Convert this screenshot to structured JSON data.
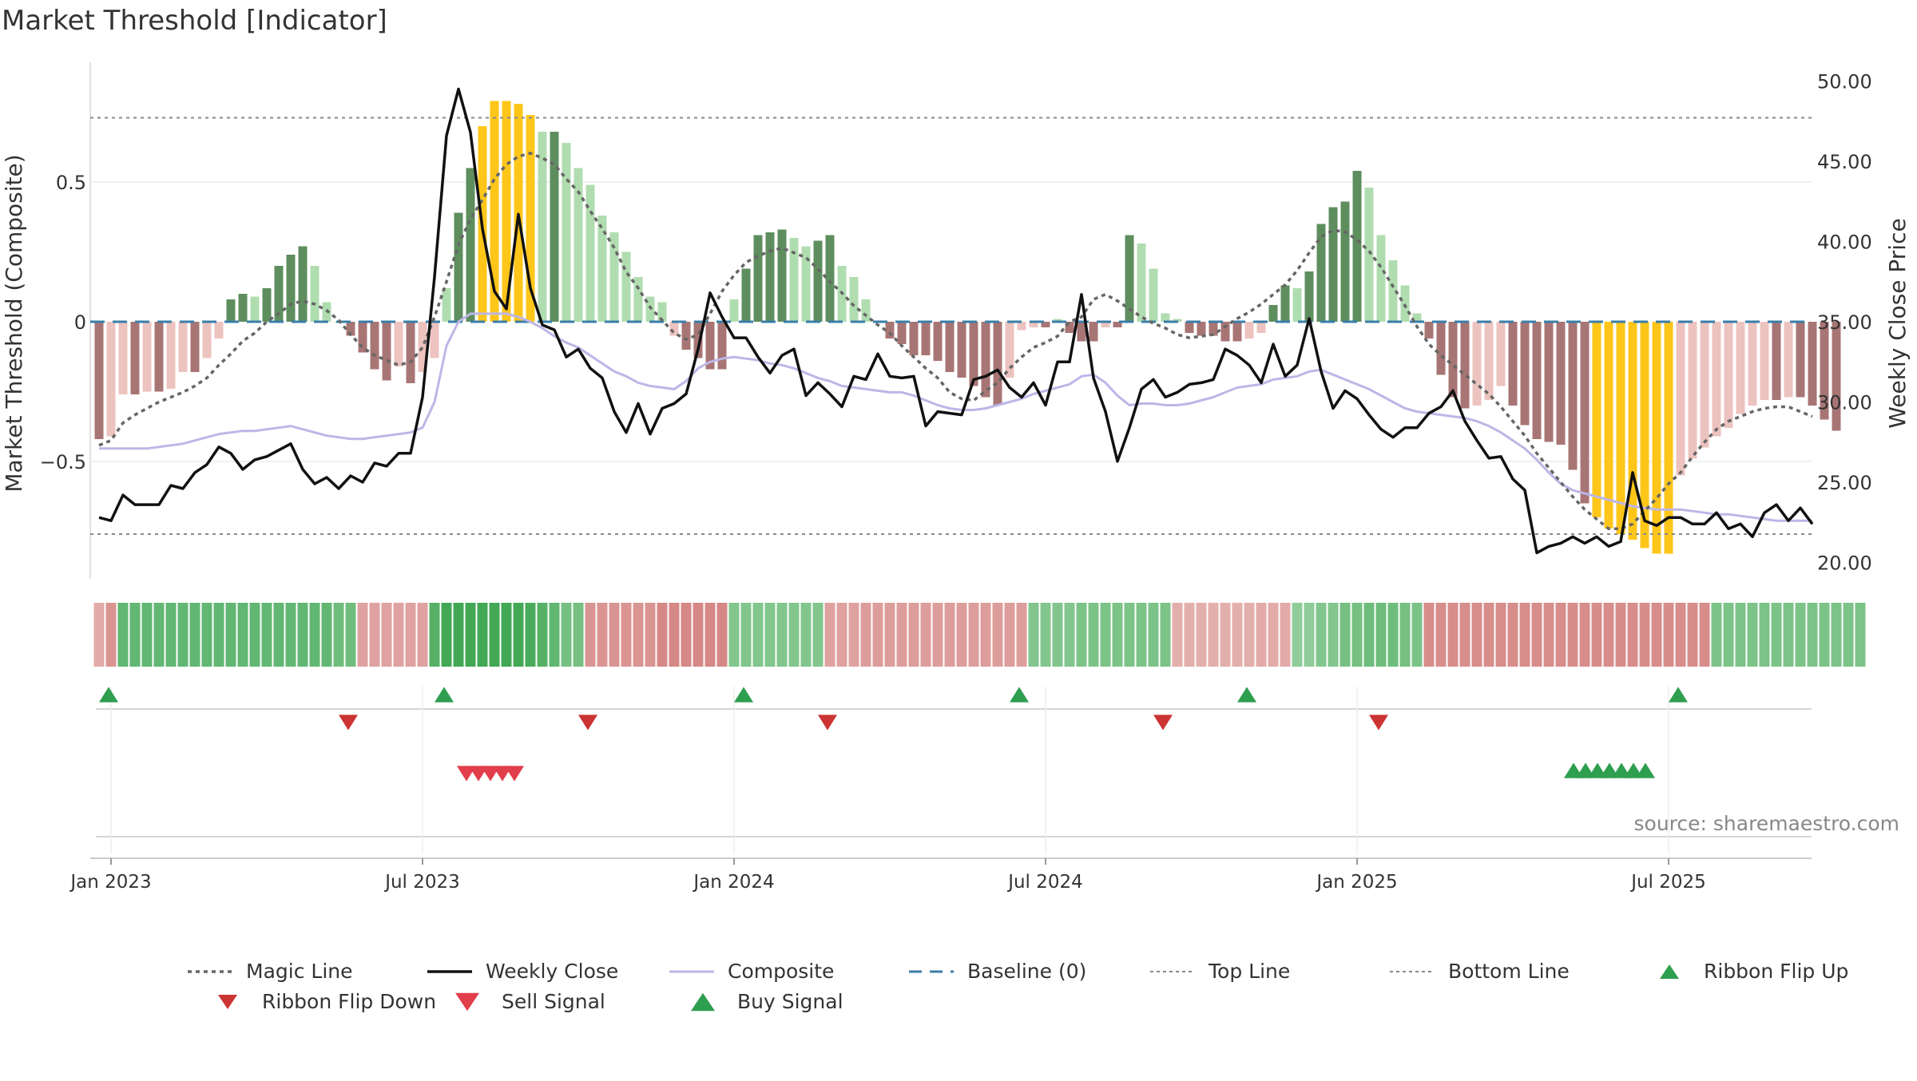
{
  "chart_data": {
    "type": "composite-indicator",
    "title": "Market Threshold [Indicator]",
    "source": "source: sharemaestro.com",
    "ylabel_left": "Market Threshold (Composite)",
    "ylabel_right": "Weekly Close Price",
    "ylim_left": [
      -0.92,
      0.92
    ],
    "ylim_right": [
      18.5,
      50.5
    ],
    "left_ticks": [
      {
        "v": 0.5,
        "label": "0.5"
      },
      {
        "v": 0,
        "label": "0"
      },
      {
        "v": -0.5,
        "label": "−0.5"
      }
    ],
    "right_ticks": [
      {
        "v": 50,
        "label": "50.00"
      },
      {
        "v": 45,
        "label": "45.00"
      },
      {
        "v": 40,
        "label": "40.00"
      },
      {
        "v": 35,
        "label": "35.00"
      },
      {
        "v": 30,
        "label": "30.00"
      },
      {
        "v": 25,
        "label": "25.00"
      },
      {
        "v": 20,
        "label": "20.00"
      }
    ],
    "x_ticks": [
      {
        "w": 1,
        "label": "Jan 2023"
      },
      {
        "w": 27,
        "label": "Jul 2023"
      },
      {
        "w": 53,
        "label": "Jan 2024"
      },
      {
        "w": 79,
        "label": "Jul 2024"
      },
      {
        "w": 105,
        "label": "Jan 2025"
      },
      {
        "w": 131,
        "label": "Jul 2025"
      }
    ],
    "week_count": 144,
    "top_line": 0.73,
    "bottom_line": -0.76,
    "composite_bars": [
      -0.42,
      -0.41,
      -0.26,
      -0.26,
      -0.25,
      -0.25,
      -0.24,
      -0.18,
      -0.18,
      -0.13,
      -0.06,
      0.08,
      0.1,
      0.09,
      0.12,
      0.2,
      0.24,
      0.27,
      0.2,
      0.07,
      0,
      -0.05,
      -0.11,
      -0.17,
      -0.21,
      -0.16,
      -0.22,
      -0.18,
      -0.13,
      0.12,
      0.39,
      0.55,
      0.7,
      0.79,
      0.79,
      0.78,
      0.74,
      0.68,
      0.68,
      0.64,
      0.55,
      0.49,
      0.38,
      0.32,
      0.25,
      0.16,
      0.09,
      0.07,
      -0.05,
      -0.1,
      -0.13,
      -0.17,
      -0.17,
      0.08,
      0.19,
      0.31,
      0.32,
      0.33,
      0.3,
      0.27,
      0.29,
      0.31,
      0.2,
      0.16,
      0.08,
      0,
      -0.06,
      -0.08,
      -0.12,
      -0.12,
      -0.14,
      -0.18,
      -0.2,
      -0.23,
      -0.27,
      -0.3,
      -0.2,
      -0.03,
      -0.02,
      -0.02,
      0.01,
      -0.04,
      -0.07,
      -0.07,
      -0.02,
      -0.02,
      0.31,
      0.28,
      0.19,
      0.03,
      0.01,
      -0.04,
      -0.05,
      -0.05,
      -0.07,
      -0.07,
      -0.06,
      -0.04,
      0.06,
      0.13,
      0.12,
      0.18,
      0.35,
      0.41,
      0.43,
      0.54,
      0.48,
      0.31,
      0.22,
      0.13,
      0.03,
      -0.06,
      -0.19,
      -0.27,
      -0.31,
      -0.3,
      -0.28,
      -0.23,
      -0.3,
      -0.37,
      -0.42,
      -0.43,
      -0.44,
      -0.53,
      -0.65,
      -0.7,
      -0.74,
      -0.76,
      -0.78,
      -0.81,
      -0.83,
      -0.83,
      -0.55,
      -0.49,
      -0.45,
      -0.41,
      -0.38,
      -0.33,
      -0.3,
      -0.28,
      -0.28,
      -0.27,
      -0.27,
      -0.3,
      -0.35,
      -0.39
    ],
    "weekly_close": [
      22.8,
      22.6,
      24.2,
      23.6,
      23.6,
      23.6,
      24.8,
      24.6,
      25.6,
      26.1,
      27.2,
      26.8,
      25.8,
      26.4,
      26.6,
      27,
      27.4,
      25.8,
      24.9,
      25.3,
      24.6,
      25.4,
      25,
      26.2,
      26,
      26.8,
      26.8,
      30.3,
      37.8,
      46.6,
      49.5,
      46.8,
      40.8,
      36.9,
      35.8,
      41.7,
      37.1,
      34.8,
      34.5,
      32.8,
      33.3,
      32.1,
      31.5,
      29.4,
      28.1,
      29.9,
      28,
      29.6,
      29.9,
      30.5,
      33.3,
      36.8,
      35.3,
      34,
      34,
      32.8,
      31.8,
      32.9,
      33.3,
      30.4,
      31.2,
      30.5,
      29.7,
      31.6,
      31.4,
      33,
      31.6,
      31.5,
      31.6,
      28.5,
      29.4,
      29.3,
      29.2,
      31.4,
      31.6,
      32,
      30.9,
      30.3,
      31.2,
      29.8,
      32.5,
      32.5,
      36.7,
      31.5,
      29.4,
      26.3,
      28.4,
      30.8,
      31.4,
      30.3,
      30.6,
      31.1,
      31.2,
      31.4,
      33.3,
      32.9,
      32.3,
      31.2,
      33.6,
      31.6,
      32.3,
      35.2,
      31.9,
      29.6,
      30.7,
      30.2,
      29.2,
      28.3,
      27.8,
      28.4,
      28.4,
      29.3,
      29.7,
      30.7,
      28.8,
      27.6,
      26.5,
      26.6,
      25.2,
      24.5,
      20.6,
      21,
      21.2,
      21.6,
      21.2,
      21.6,
      21,
      21.3,
      25.6,
      22.6,
      22.3,
      22.8,
      22.8,
      22.4,
      22.4,
      23.1,
      22.1,
      22.4,
      21.6,
      23.1,
      23.6,
      22.6,
      23.4,
      22.4
    ],
    "composite_line": [
      27.1,
      27.1,
      27.1,
      27.1,
      27.1,
      27.2,
      27.3,
      27.4,
      27.6,
      27.8,
      28,
      28.1,
      28.2,
      28.2,
      28.3,
      28.4,
      28.5,
      28.3,
      28.1,
      27.9,
      27.8,
      27.7,
      27.7,
      27.8,
      27.9,
      28,
      28.1,
      28.4,
      30,
      33.5,
      35,
      35.5,
      35.5,
      35.5,
      35.5,
      35.3,
      35,
      34.6,
      34.1,
      33.7,
      33.4,
      32.9,
      32.4,
      31.9,
      31.6,
      31.2,
      31,
      30.9,
      30.8,
      31.3,
      32.1,
      32.5,
      32.7,
      32.8,
      32.7,
      32.6,
      32.4,
      32.3,
      32.1,
      31.8,
      31.5,
      31.3,
      31,
      30.9,
      30.8,
      30.7,
      30.6,
      30.6,
      30.4,
      30.1,
      29.8,
      29.6,
      29.5,
      29.5,
      29.6,
      29.8,
      30,
      30.2,
      30.5,
      30.7,
      30.9,
      31.1,
      31.6,
      31.7,
      31.2,
      30.4,
      29.8,
      29.9,
      29.9,
      29.8,
      29.8,
      29.9,
      30.1,
      30.3,
      30.6,
      30.9,
      31,
      31.1,
      31.4,
      31.5,
      31.6,
      31.9,
      32,
      31.7,
      31.4,
      31.1,
      30.8,
      30.4,
      30,
      29.6,
      29.4,
      29.3,
      29.2,
      29.1,
      29,
      28.8,
      28.5,
      28.1,
      27.6,
      27.1,
      26.4,
      25.6,
      24.9,
      24.5,
      24.3,
      24.1,
      23.9,
      23.7,
      23.5,
      23.4,
      23.3,
      23.3,
      23.3,
      23.2,
      23.1,
      23,
      23,
      22.9,
      22.8,
      22.7,
      22.6,
      22.6,
      22.6,
      22.6
    ],
    "magic_line": [
      27.3,
      27.6,
      28.7,
      29.2,
      29.6,
      30,
      30.3,
      30.6,
      31,
      31.5,
      32.3,
      33,
      33.8,
      34.3,
      35,
      35.5,
      36.1,
      36.3,
      36.1,
      35.7,
      35.1,
      34.2,
      33.4,
      32.9,
      32.6,
      32.3,
      32.5,
      33.4,
      35.3,
      37.5,
      39.8,
      41.4,
      42.6,
      43.9,
      44.8,
      45.3,
      45.5,
      45.2,
      44.8,
      43.9,
      43.1,
      41.9,
      40.8,
      39.6,
      38.1,
      37.1,
      35.9,
      35.1,
      34.3,
      33.9,
      34.2,
      35.5,
      36.9,
      37.9,
      38.7,
      39.1,
      39.4,
      39.6,
      39.3,
      39,
      38.3,
      37.5,
      36.8,
      36,
      35.4,
      34.8,
      34.3,
      33.5,
      32.8,
      32.1,
      31.5,
      30.6,
      30.2,
      30.1,
      30.7,
      31.2,
      32.1,
      32.8,
      33.4,
      33.7,
      34.1,
      35,
      35.3,
      36.4,
      36.7,
      36.3,
      35.8,
      35.3,
      34.9,
      34.6,
      34.2,
      34,
      34.1,
      34.2,
      34.7,
      35.2,
      35.6,
      36.1,
      36.7,
      37.3,
      38.2,
      39.3,
      40.3,
      40.7,
      40.6,
      40.1,
      39.4,
      38.4,
      37.2,
      36,
      34.7,
      33.6,
      32.9,
      32.3,
      31.7,
      31.1,
      30.5,
      29.7,
      28.8,
      27.9,
      26.8,
      25.9,
      25,
      24.1,
      23.3,
      22.7,
      22.1,
      22.1,
      22.4,
      23.2,
      24,
      24.9,
      25.6,
      26.6,
      27.5,
      28.3,
      28.8,
      29.1,
      29.4,
      29.6,
      29.7,
      29.7,
      29.4,
      29.1
    ],
    "ribbon_levels": [
      -0.35,
      -0.6,
      0.7,
      0.7,
      0.7,
      0.7,
      0.7,
      0.7,
      0.7,
      0.7,
      0.7,
      0.7,
      0.7,
      0.7,
      0.7,
      0.7,
      0.7,
      0.7,
      0.7,
      0.7,
      0.6,
      0.6,
      -0.45,
      -0.45,
      -0.45,
      -0.45,
      -0.45,
      -0.45,
      0.8,
      0.95,
      0.95,
      0.95,
      0.95,
      0.95,
      0.95,
      0.95,
      0.9,
      0.8,
      0.7,
      0.55,
      0.55,
      -0.6,
      -0.6,
      -0.6,
      -0.6,
      -0.6,
      -0.6,
      -0.75,
      -0.75,
      -0.75,
      -0.75,
      -0.75,
      -0.75,
      0.45,
      0.45,
      0.45,
      0.45,
      0.45,
      0.45,
      0.45,
      0.45,
      -0.45,
      -0.45,
      -0.45,
      -0.5,
      -0.5,
      -0.5,
      -0.5,
      -0.5,
      -0.5,
      -0.5,
      -0.5,
      -0.5,
      -0.5,
      -0.5,
      -0.5,
      -0.5,
      -0.5,
      0.45,
      0.45,
      0.45,
      0.45,
      0.5,
      0.5,
      0.5,
      0.5,
      0.5,
      0.5,
      0.5,
      0.5,
      -0.3,
      -0.3,
      -0.3,
      -0.3,
      -0.3,
      -0.3,
      -0.3,
      -0.35,
      -0.35,
      -0.35,
      0.35,
      0.35,
      0.45,
      0.45,
      0.55,
      0.55,
      0.6,
      0.6,
      0.6,
      0.55,
      0.5,
      -0.7,
      -0.7,
      -0.7,
      -0.7,
      -0.7,
      -0.7,
      -0.7,
      -0.7,
      -0.7,
      -0.7,
      -0.7,
      -0.7,
      -0.7,
      -0.7,
      -0.7,
      -0.7,
      -0.7,
      -0.7,
      -0.7,
      -0.7,
      -0.7,
      -0.7,
      -0.7,
      -0.7,
      0.5,
      0.5,
      0.5,
      0.5,
      0.5,
      0.5,
      0.5,
      0.5,
      0.5,
      0.5,
      0.5,
      0.5,
      0.5
    ],
    "flip_up_weeks": [
      0,
      28,
      53,
      76,
      95,
      131
    ],
    "flip_down_weeks": [
      20,
      40,
      60,
      88,
      106
    ],
    "sell_signal_weeks": [
      30,
      31,
      32,
      33,
      34
    ],
    "buy_signal_weeks": [
      122,
      123,
      124,
      125,
      126,
      127,
      128
    ],
    "legend": [
      {
        "label": "Magic Line",
        "type": "dotted"
      },
      {
        "label": "Weekly Close",
        "type": "solid"
      },
      {
        "label": "Composite",
        "type": "lavender"
      },
      {
        "label": "Baseline (0)",
        "type": "dashed"
      },
      {
        "label": "Top Line",
        "type": "thin-dotted"
      },
      {
        "label": "Bottom Line",
        "type": "thin-dotted"
      },
      {
        "label": "Ribbon Flip Up",
        "type": "tri-up"
      },
      {
        "label": "Ribbon Flip Down",
        "type": "tri-down"
      },
      {
        "label": "Sell Signal",
        "type": "tri-down-red"
      },
      {
        "label": "Buy Signal",
        "type": "tri-up-green"
      }
    ]
  },
  "colors": {
    "bar_pos_strong": "#5e8e5e",
    "bar_pos_weak": "#b0ddb0",
    "bar_neg_strong": "#a87575",
    "bar_neg_weak": "#edc3bf",
    "bar_extreme": "#ffc61a",
    "close_line": "#111111",
    "composite_line": "#bdb6e6",
    "magic_line": "#666666",
    "baseline": "#3a7ea8",
    "ref_lines": "#888888",
    "flip_up": "#2e9e4f",
    "flip_down": "#cc3333",
    "sell": "#e23d4b",
    "buy": "#2e9e4f"
  }
}
